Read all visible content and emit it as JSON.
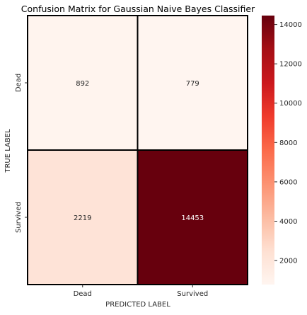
{
  "chart_data": {
    "type": "heatmap",
    "title": "Confusion Matrix for Gaussian Naive Bayes Classifier",
    "xlabel": "PREDICTED LABEL",
    "ylabel": "TRUE LABEL",
    "x_categories": [
      "Dead",
      "Survived"
    ],
    "y_categories": [
      "Dead",
      "Survived"
    ],
    "values": [
      [
        892,
        779
      ],
      [
        2219,
        14453
      ]
    ],
    "colormap": "Reds",
    "vmin": 779,
    "vmax": 14453,
    "colorbar_ticks": [
      2000,
      4000,
      6000,
      8000,
      10000,
      12000,
      14000
    ],
    "annot_dark_color": "#262626",
    "annot_light_color": "#ffffff",
    "cell_border_color": "#000000"
  }
}
